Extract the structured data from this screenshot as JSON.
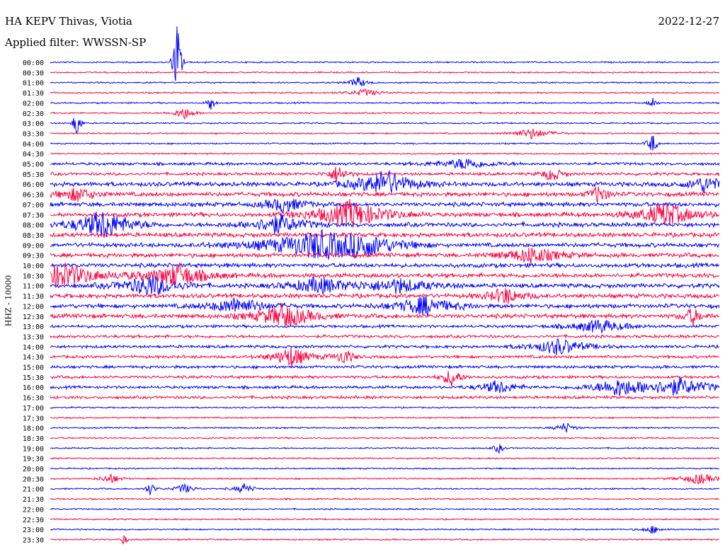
{
  "header": {
    "station": "HA KEPV Thivas, Viotia",
    "date": "2022-12-27",
    "filter": "Applied filter: WWSSN-SP"
  },
  "chart_data": {
    "type": "line",
    "kind": "helicorder",
    "ylabel": "HHZ - 10000",
    "row_labels": [
      "00:00",
      "00:30",
      "01:00",
      "01:30",
      "02:00",
      "02:30",
      "03:00",
      "03:30",
      "04:00",
      "04:30",
      "05:00",
      "05:30",
      "06:00",
      "06:30",
      "07:00",
      "07:30",
      "08:00",
      "08:30",
      "09:00",
      "09:30",
      "10:00",
      "10:30",
      "11:00",
      "11:30",
      "12:00",
      "12:30",
      "13:00",
      "13:30",
      "14:00",
      "14:30",
      "15:00",
      "15:30",
      "16:00",
      "16:30",
      "17:00",
      "17:30",
      "18:00",
      "18:30",
      "19:00",
      "19:30",
      "20:00",
      "20:30",
      "21:00",
      "21:30",
      "22:00",
      "22:30",
      "23:00",
      "23:30"
    ],
    "trace_colors": [
      "#0000ff",
      "#ff0040"
    ],
    "noise_level": [
      1,
      1,
      1,
      1,
      1,
      1,
      1,
      1,
      1,
      1,
      2,
      2,
      3,
      3,
      3,
      3,
      3,
      3,
      3,
      3,
      3,
      3,
      3,
      3,
      3,
      3,
      2,
      2,
      2,
      2,
      2,
      2,
      2,
      2,
      1,
      1,
      1,
      1,
      1,
      1,
      1,
      1,
      1,
      1,
      1,
      1,
      1,
      1
    ],
    "events": [
      {
        "row": 0,
        "t": 0.19,
        "amp": 70,
        "dur": 0.004
      },
      {
        "row": 2,
        "t": 0.46,
        "amp": 8,
        "dur": 0.01
      },
      {
        "row": 3,
        "t": 0.47,
        "amp": 5,
        "dur": 0.02
      },
      {
        "row": 4,
        "t": 0.24,
        "amp": 14,
        "dur": 0.004
      },
      {
        "row": 4,
        "t": 0.9,
        "amp": 10,
        "dur": 0.004
      },
      {
        "row": 5,
        "t": 0.2,
        "amp": 10,
        "dur": 0.01
      },
      {
        "row": 6,
        "t": 0.04,
        "amp": 25,
        "dur": 0.004
      },
      {
        "row": 7,
        "t": 0.72,
        "amp": 8,
        "dur": 0.02
      },
      {
        "row": 8,
        "t": 0.9,
        "amp": 16,
        "dur": 0.005
      },
      {
        "row": 10,
        "t": 0.62,
        "amp": 8,
        "dur": 0.03
      },
      {
        "row": 11,
        "t": 0.43,
        "amp": 14,
        "dur": 0.01
      },
      {
        "row": 11,
        "t": 0.75,
        "amp": 12,
        "dur": 0.01
      },
      {
        "row": 12,
        "t": 0.5,
        "amp": 20,
        "dur": 0.03
      },
      {
        "row": 12,
        "t": 0.98,
        "amp": 12,
        "dur": 0.02
      },
      {
        "row": 13,
        "t": 0.04,
        "amp": 10,
        "dur": 0.02
      },
      {
        "row": 13,
        "t": 0.82,
        "amp": 14,
        "dur": 0.01
      },
      {
        "row": 14,
        "t": 0.35,
        "amp": 12,
        "dur": 0.02
      },
      {
        "row": 15,
        "t": 0.45,
        "amp": 20,
        "dur": 0.04
      },
      {
        "row": 15,
        "t": 0.92,
        "amp": 18,
        "dur": 0.03
      },
      {
        "row": 16,
        "t": 0.08,
        "amp": 22,
        "dur": 0.03
      },
      {
        "row": 16,
        "t": 0.34,
        "amp": 14,
        "dur": 0.03
      },
      {
        "row": 18,
        "t": 0.4,
        "amp": 20,
        "dur": 0.06
      },
      {
        "row": 18,
        "t": 0.47,
        "amp": 12,
        "dur": 0.03
      },
      {
        "row": 19,
        "t": 0.72,
        "amp": 12,
        "dur": 0.03
      },
      {
        "row": 21,
        "t": 0.02,
        "amp": 18,
        "dur": 0.04
      },
      {
        "row": 21,
        "t": 0.19,
        "amp": 18,
        "dur": 0.03
      },
      {
        "row": 22,
        "t": 0.15,
        "amp": 16,
        "dur": 0.03
      },
      {
        "row": 22,
        "t": 0.4,
        "amp": 12,
        "dur": 0.03
      },
      {
        "row": 22,
        "t": 0.52,
        "amp": 10,
        "dur": 0.04
      },
      {
        "row": 23,
        "t": 0.68,
        "amp": 12,
        "dur": 0.02
      },
      {
        "row": 24,
        "t": 0.28,
        "amp": 12,
        "dur": 0.03
      },
      {
        "row": 24,
        "t": 0.56,
        "amp": 14,
        "dur": 0.03
      },
      {
        "row": 25,
        "t": 0.35,
        "amp": 18,
        "dur": 0.03
      },
      {
        "row": 25,
        "t": 0.96,
        "amp": 12,
        "dur": 0.01
      },
      {
        "row": 26,
        "t": 0.82,
        "amp": 10,
        "dur": 0.03
      },
      {
        "row": 28,
        "t": 0.76,
        "amp": 12,
        "dur": 0.03
      },
      {
        "row": 29,
        "t": 0.36,
        "amp": 16,
        "dur": 0.02
      },
      {
        "row": 29,
        "t": 0.44,
        "amp": 12,
        "dur": 0.01
      },
      {
        "row": 31,
        "t": 0.6,
        "amp": 14,
        "dur": 0.01
      },
      {
        "row": 32,
        "t": 0.67,
        "amp": 10,
        "dur": 0.02
      },
      {
        "row": 32,
        "t": 0.85,
        "amp": 12,
        "dur": 0.03
      },
      {
        "row": 32,
        "t": 0.94,
        "amp": 12,
        "dur": 0.04
      },
      {
        "row": 36,
        "t": 0.77,
        "amp": 8,
        "dur": 0.01
      },
      {
        "row": 38,
        "t": 0.67,
        "amp": 8,
        "dur": 0.005
      },
      {
        "row": 41,
        "t": 0.09,
        "amp": 8,
        "dur": 0.01
      },
      {
        "row": 41,
        "t": 0.97,
        "amp": 8,
        "dur": 0.02
      },
      {
        "row": 42,
        "t": 0.15,
        "amp": 10,
        "dur": 0.005
      },
      {
        "row": 42,
        "t": 0.2,
        "amp": 8,
        "dur": 0.01
      },
      {
        "row": 42,
        "t": 0.29,
        "amp": 8,
        "dur": 0.01
      },
      {
        "row": 46,
        "t": 0.9,
        "amp": 6,
        "dur": 0.01
      },
      {
        "row": 47,
        "t": 0.11,
        "amp": 10,
        "dur": 0.003
      }
    ]
  }
}
